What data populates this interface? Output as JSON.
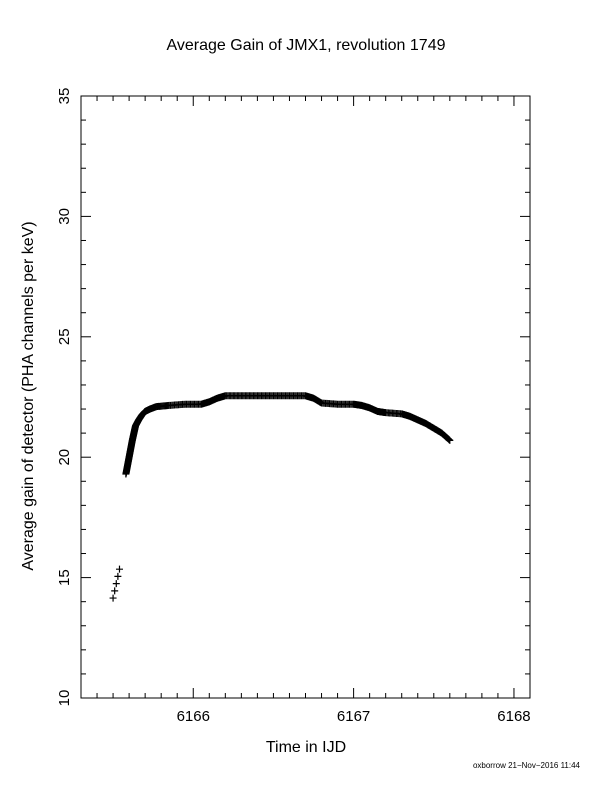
{
  "chart_data": {
    "type": "scatter",
    "title": "Average Gain of JMX1, revolution 1749",
    "xlabel": "Time in IJD",
    "ylabel": "Average gain of detector (PHA channels per keV)",
    "xlim": [
      6165.3,
      6168.1
    ],
    "ylim": [
      10,
      35
    ],
    "x_ticks": [
      "6166",
      "6167",
      "6168"
    ],
    "y_ticks": [
      "10",
      "15",
      "20",
      "25",
      "30",
      "35"
    ],
    "marker": "plus",
    "grid": false,
    "series": [
      {
        "points": [
          [
            6165.5,
            14.15
          ],
          [
            6165.51,
            14.45
          ],
          [
            6165.52,
            14.75
          ],
          [
            6165.53,
            15.05
          ],
          [
            6165.54,
            15.35
          ],
          [
            6165.58,
            19.3
          ],
          [
            6165.59,
            19.65
          ],
          [
            6165.6,
            20.0
          ],
          [
            6165.61,
            20.35
          ],
          [
            6165.62,
            20.7
          ],
          [
            6165.63,
            21.0
          ],
          [
            6165.64,
            21.3
          ],
          [
            6165.66,
            21.55
          ],
          [
            6165.68,
            21.75
          ],
          [
            6165.7,
            21.9
          ],
          [
            6165.73,
            22.0
          ],
          [
            6165.77,
            22.1
          ],
          [
            6165.85,
            22.15
          ],
          [
            6165.95,
            22.2
          ],
          [
            6166.05,
            22.2
          ],
          [
            6166.1,
            22.3
          ],
          [
            6166.15,
            22.45
          ],
          [
            6166.2,
            22.55
          ],
          [
            6166.3,
            22.55
          ],
          [
            6166.4,
            22.55
          ],
          [
            6166.5,
            22.55
          ],
          [
            6166.6,
            22.55
          ],
          [
            6166.7,
            22.55
          ],
          [
            6166.75,
            22.45
          ],
          [
            6166.8,
            22.25
          ],
          [
            6166.9,
            22.2
          ],
          [
            6167.0,
            22.2
          ],
          [
            6167.05,
            22.15
          ],
          [
            6167.1,
            22.05
          ],
          [
            6167.15,
            21.9
          ],
          [
            6167.2,
            21.85
          ],
          [
            6167.3,
            21.8
          ],
          [
            6167.35,
            21.7
          ],
          [
            6167.4,
            21.55
          ],
          [
            6167.45,
            21.4
          ],
          [
            6167.5,
            21.2
          ],
          [
            6167.55,
            21.0
          ],
          [
            6167.6,
            20.7
          ]
        ]
      }
    ]
  },
  "footer": {
    "stamp": "oxborrow 21−Nov−2016 11:44"
  }
}
